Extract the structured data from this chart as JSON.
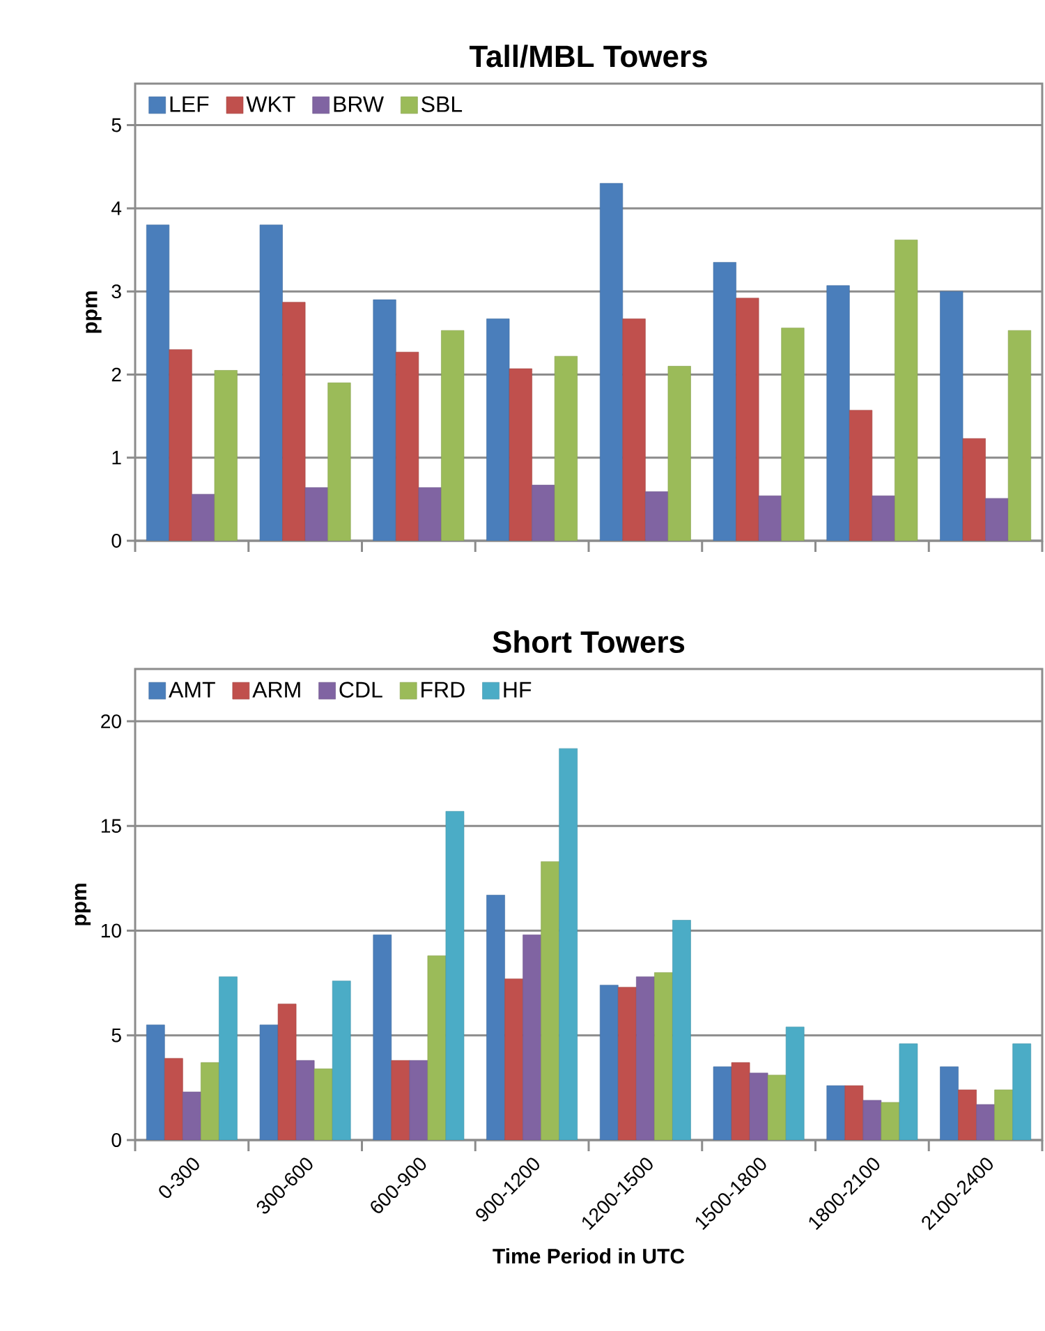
{
  "chart_data": [
    {
      "type": "bar",
      "title": "Tall/MBL Towers",
      "ylabel": "ppm",
      "categories": [
        null,
        null,
        null,
        null,
        null,
        null,
        null,
        null
      ],
      "series": [
        {
          "name": "LEF",
          "color": "#4a7ebb",
          "values": [
            3.8,
            3.8,
            2.9,
            2.67,
            4.3,
            3.35,
            3.07,
            3.0
          ]
        },
        {
          "name": "WKT",
          "color": "#c0504d",
          "values": [
            2.3,
            2.87,
            2.27,
            2.07,
            2.67,
            2.92,
            1.57,
            1.23
          ]
        },
        {
          "name": "BRW",
          "color": "#8064a2",
          "values": [
            0.56,
            0.64,
            0.64,
            0.67,
            0.59,
            0.54,
            0.54,
            0.51
          ]
        },
        {
          "name": "SBL",
          "color": "#9bbb59",
          "values": [
            2.05,
            1.9,
            2.53,
            2.22,
            2.1,
            2.56,
            3.62,
            2.53
          ]
        }
      ],
      "ylim": [
        0,
        5.5
      ],
      "yticks": [
        0,
        1,
        2,
        3,
        4,
        5
      ],
      "grid": "y",
      "legend": "top left",
      "tick_labels": "y"
    },
    {
      "type": "bar",
      "title": "Short Towers",
      "ylabel": "ppm",
      "xlabel": "Time Period in UTC",
      "categories": [
        "0-300",
        "300-600",
        "600-900",
        "900-1200",
        "1200-1500",
        "1500-1800",
        "1800-2100",
        "2100-2400"
      ],
      "series": [
        {
          "name": "AMT",
          "color": "#4a7ebb",
          "values": [
            5.5,
            5.5,
            9.8,
            11.7,
            7.4,
            3.5,
            2.6,
            3.5
          ]
        },
        {
          "name": "ARM",
          "color": "#c0504d",
          "values": [
            3.9,
            6.5,
            3.8,
            7.7,
            7.3,
            3.7,
            2.6,
            2.4
          ]
        },
        {
          "name": "CDL",
          "color": "#8064a2",
          "values": [
            2.3,
            3.8,
            3.8,
            9.8,
            7.8,
            3.2,
            1.9,
            1.7
          ]
        },
        {
          "name": "FRD",
          "color": "#9bbb59",
          "values": [
            3.7,
            3.4,
            8.8,
            13.3,
            8.0,
            3.1,
            1.8,
            2.4
          ]
        },
        {
          "name": "HF",
          "color": "#4bacc6",
          "values": [
            7.8,
            7.6,
            15.7,
            18.7,
            10.5,
            5.4,
            4.6,
            4.6
          ]
        }
      ],
      "ylim": [
        0,
        22.5
      ],
      "yticks": [
        0,
        5,
        10,
        15,
        20
      ],
      "grid": "y",
      "legend": "top left"
    }
  ]
}
